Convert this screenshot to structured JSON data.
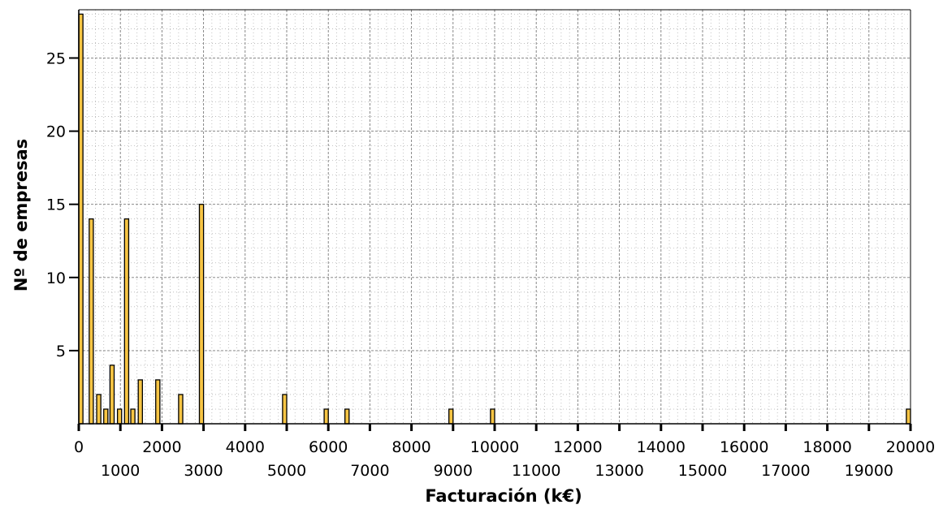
{
  "chart_data": {
    "type": "bar",
    "title": "",
    "xlabel": "Facturación (k€)",
    "ylabel": "Nº de empresas",
    "xlim": [
      0,
      20000
    ],
    "ylim": [
      0,
      28.3
    ],
    "grid": true,
    "x_ticks_upper": [
      "0",
      "2000",
      "4000",
      "6000",
      "8000",
      "10000",
      "12000",
      "14000",
      "16000",
      "18000",
      "20000"
    ],
    "x_ticks_lower": [
      "1000",
      "3000",
      "5000",
      "7000",
      "9000",
      "11000",
      "13000",
      "15000",
      "17000",
      "19000"
    ],
    "y_ticks": [
      "5",
      "10",
      "15",
      "20",
      "25"
    ],
    "bar_color": "#f7c544",
    "bar_edge_color": "#000000",
    "x": [
      50,
      300,
      480,
      650,
      800,
      980,
      1150,
      1300,
      1480,
      1900,
      2450,
      2950,
      4950,
      5950,
      6450,
      8950,
      9950,
      19950
    ],
    "values": [
      28,
      14,
      2,
      1,
      4,
      1,
      14,
      1,
      3,
      3,
      2,
      15,
      2,
      1,
      1,
      1,
      1,
      1
    ]
  }
}
